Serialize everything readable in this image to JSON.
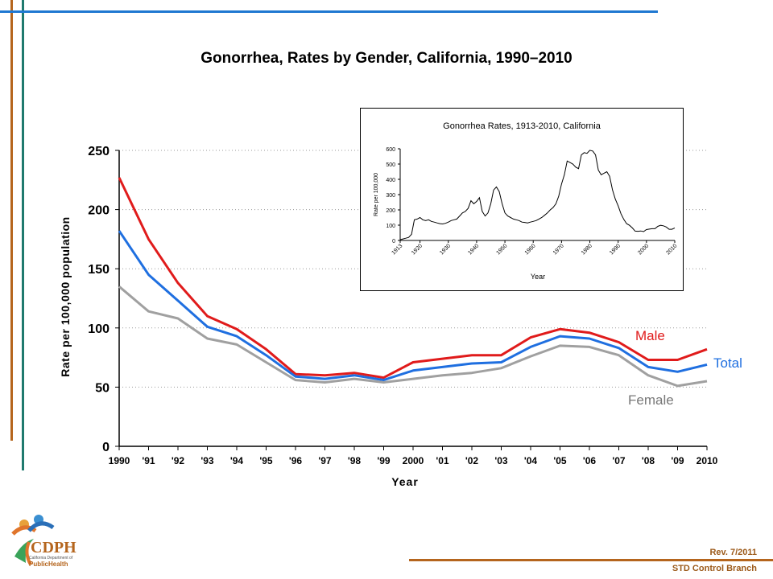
{
  "slide": {
    "title": "Gonorrhea, Rates by Gender, California, 1990–2010",
    "footer": {
      "revision": "Rev. 7/2011",
      "branch": "STD Control Branch"
    },
    "logo": {
      "text": "CDPH",
      "subtext": "California Department of",
      "subtext2": "PublicHealth"
    },
    "colors": {
      "accent_blue": "#1f78d1",
      "accent_orange": "#b5651d",
      "accent_teal": "#1f7a6e"
    }
  },
  "chart_data": [
    {
      "type": "line",
      "title": "Gonorrhea, Rates by Gender, California, 1990–2010",
      "xlabel": "Year",
      "ylabel": "Rate per 100,000 population",
      "categories": [
        "1990",
        "'91",
        "'92",
        "'93",
        "'94",
        "'95",
        "'96",
        "'97",
        "'98",
        "'99",
        "2000",
        "'01",
        "'02",
        "'03",
        "'04",
        "'05",
        "'06",
        "'07",
        "'08",
        "'09",
        "2010"
      ],
      "ylim": [
        0,
        250
      ],
      "yticks": [
        0,
        50,
        100,
        150,
        200,
        250
      ],
      "grid": "horizontal dotted",
      "series": [
        {
          "name": "Male",
          "color": "#e01b1b",
          "values": [
            227,
            175,
            138,
            110,
            99,
            82,
            61,
            60,
            62,
            58,
            71,
            74,
            77,
            77,
            92,
            99,
            96,
            88,
            73,
            73,
            82
          ]
        },
        {
          "name": "Total",
          "color": "#1f6fe0",
          "values": [
            182,
            145,
            123,
            101,
            93,
            77,
            59,
            57,
            60,
            56,
            64,
            67,
            70,
            71,
            84,
            93,
            91,
            83,
            67,
            63,
            69
          ]
        },
        {
          "name": "Female",
          "color": "#a0a0a0",
          "values": [
            135,
            114,
            108,
            91,
            86,
            71,
            56,
            54,
            57,
            54,
            57,
            60,
            62,
            66,
            76,
            85,
            84,
            77,
            60,
            51,
            55
          ]
        }
      ]
    },
    {
      "type": "line",
      "title": "Gonorrhea Rates, 1913-2010, California",
      "xlabel": "Year",
      "ylabel": "Rate per 100,000",
      "xlim": [
        1913,
        2010
      ],
      "xticks": [
        "1913",
        "1920",
        "1930",
        "1940",
        "1950",
        "1960",
        "1970",
        "1980",
        "1990",
        "2000",
        "2010"
      ],
      "ylim": [
        0,
        600
      ],
      "yticks": [
        0,
        100,
        200,
        300,
        400,
        500,
        600
      ],
      "series": [
        {
          "name": "",
          "color": "#000000",
          "x": [
            1913,
            1914,
            1915,
            1916,
            1917,
            1918,
            1919,
            1920,
            1921,
            1922,
            1923,
            1924,
            1925,
            1926,
            1927,
            1928,
            1929,
            1930,
            1931,
            1932,
            1933,
            1934,
            1935,
            1936,
            1937,
            1938,
            1939,
            1940,
            1941,
            1942,
            1943,
            1944,
            1945,
            1946,
            1947,
            1948,
            1949,
            1950,
            1951,
            1952,
            1953,
            1954,
            1955,
            1956,
            1957,
            1958,
            1959,
            1960,
            1961,
            1962,
            1963,
            1964,
            1965,
            1966,
            1967,
            1968,
            1969,
            1970,
            1971,
            1972,
            1973,
            1974,
            1975,
            1976,
            1977,
            1978,
            1979,
            1980,
            1981,
            1982,
            1983,
            1984,
            1985,
            1986,
            1987,
            1988,
            1989,
            1990,
            1991,
            1992,
            1993,
            1994,
            1995,
            1996,
            1997,
            1998,
            1999,
            2000,
            2001,
            2002,
            2003,
            2004,
            2005,
            2006,
            2007,
            2008,
            2009,
            2010
          ],
          "y": [
            5,
            10,
            15,
            20,
            40,
            135,
            140,
            150,
            135,
            130,
            135,
            125,
            120,
            115,
            110,
            108,
            112,
            120,
            130,
            135,
            140,
            160,
            180,
            190,
            210,
            260,
            240,
            255,
            280,
            190,
            160,
            180,
            240,
            330,
            350,
            320,
            240,
            180,
            160,
            150,
            140,
            135,
            130,
            120,
            118,
            115,
            120,
            125,
            130,
            140,
            150,
            165,
            180,
            200,
            215,
            240,
            290,
            370,
            430,
            520,
            510,
            500,
            480,
            470,
            560,
            575,
            570,
            590,
            585,
            560,
            460,
            430,
            440,
            450,
            420,
            330,
            270,
            227,
            175,
            138,
            110,
            99,
            82,
            61,
            60,
            62,
            58,
            71,
            74,
            77,
            77,
            92,
            99,
            96,
            88,
            73,
            73,
            82
          ]
        }
      ]
    }
  ]
}
